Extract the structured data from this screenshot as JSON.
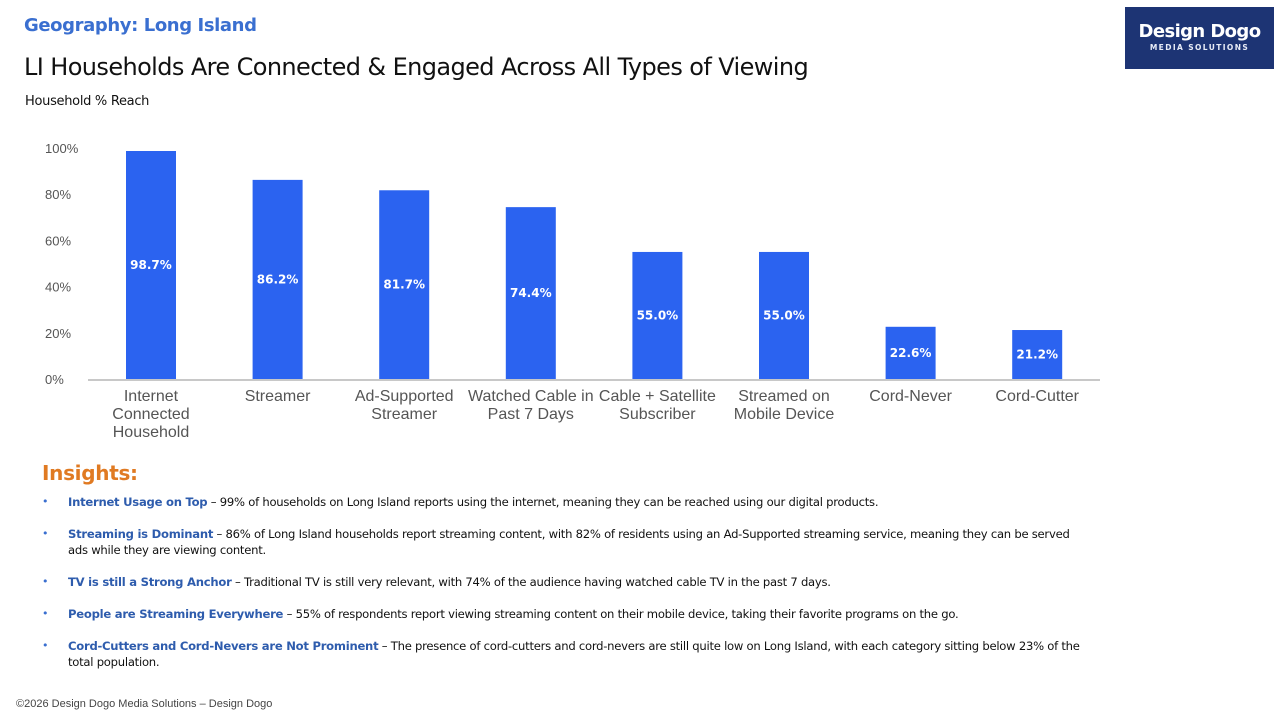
{
  "header": {
    "geography": "Geography: Long Island",
    "title": "LI Households Are Connected & Engaged Across All Types of Viewing",
    "subtitle": "Household % Reach"
  },
  "logo": {
    "brand": "Design Dogo",
    "tagline": "MEDIA SOLUTIONS",
    "background_color": "#1d3474"
  },
  "chart_data": {
    "type": "bar",
    "title": "LI Households Are Connected & Engaged Across All Types of Viewing",
    "ylabel": "Household % Reach",
    "xlabel": "",
    "ylim": [
      0,
      100
    ],
    "yticks": [
      "0%",
      "20%",
      "40%",
      "60%",
      "80%",
      "100%"
    ],
    "ytick_values": [
      0,
      20,
      40,
      60,
      80,
      100
    ],
    "grid": false,
    "bar_color": "#2b63f0",
    "categories": [
      [
        "Internet",
        "Connected",
        "Household"
      ],
      [
        "Streamer"
      ],
      [
        "Ad-Supported",
        "Streamer"
      ],
      [
        "Watched Cable in",
        "Past 7 Days"
      ],
      [
        "Cable + Satellite",
        "Subscriber"
      ],
      [
        "Streamed on",
        "Mobile Device"
      ],
      [
        "Cord-Never"
      ],
      [
        "Cord-Cutter"
      ]
    ],
    "values": [
      98.7,
      86.2,
      81.7,
      74.4,
      55.0,
      55.0,
      22.6,
      21.2
    ],
    "data_labels": [
      "98.7%",
      "86.2%",
      "81.7%",
      "74.4%",
      "55.0%",
      "55.0%",
      "22.6%",
      "21.2%"
    ]
  },
  "insights": {
    "title": "Insights:",
    "title_color": "#e07a22",
    "items": [
      {
        "lead": "Internet Usage on Top",
        "text": " – 99% of households on Long Island reports using the internet, meaning they can be reached using our digital products."
      },
      {
        "lead": "Streaming is Dominant",
        "text": " –  86% of Long Island households report streaming content, with 82% of residents using an Ad-Supported streaming service, meaning they can be served ads while they are viewing content."
      },
      {
        "lead": "TV is still a Strong Anchor",
        "text": " – Traditional TV is still very relevant, with 74% of the audience having watched cable TV in the past 7 days."
      },
      {
        "lead": "People are Streaming Everywhere",
        "text": " – 55% of respondents report viewing streaming content on their mobile device, taking their favorite programs on the go."
      },
      {
        "lead": "Cord-Cutters and Cord-Nevers are Not Prominent",
        "text": " – The presence of cord-cutters and cord-nevers are still quite low on Long Island, with each category sitting below 23% of the total population."
      }
    ]
  },
  "footer": {
    "text": "©2026 Design Dogo Media Solutions – Design Dogo"
  }
}
